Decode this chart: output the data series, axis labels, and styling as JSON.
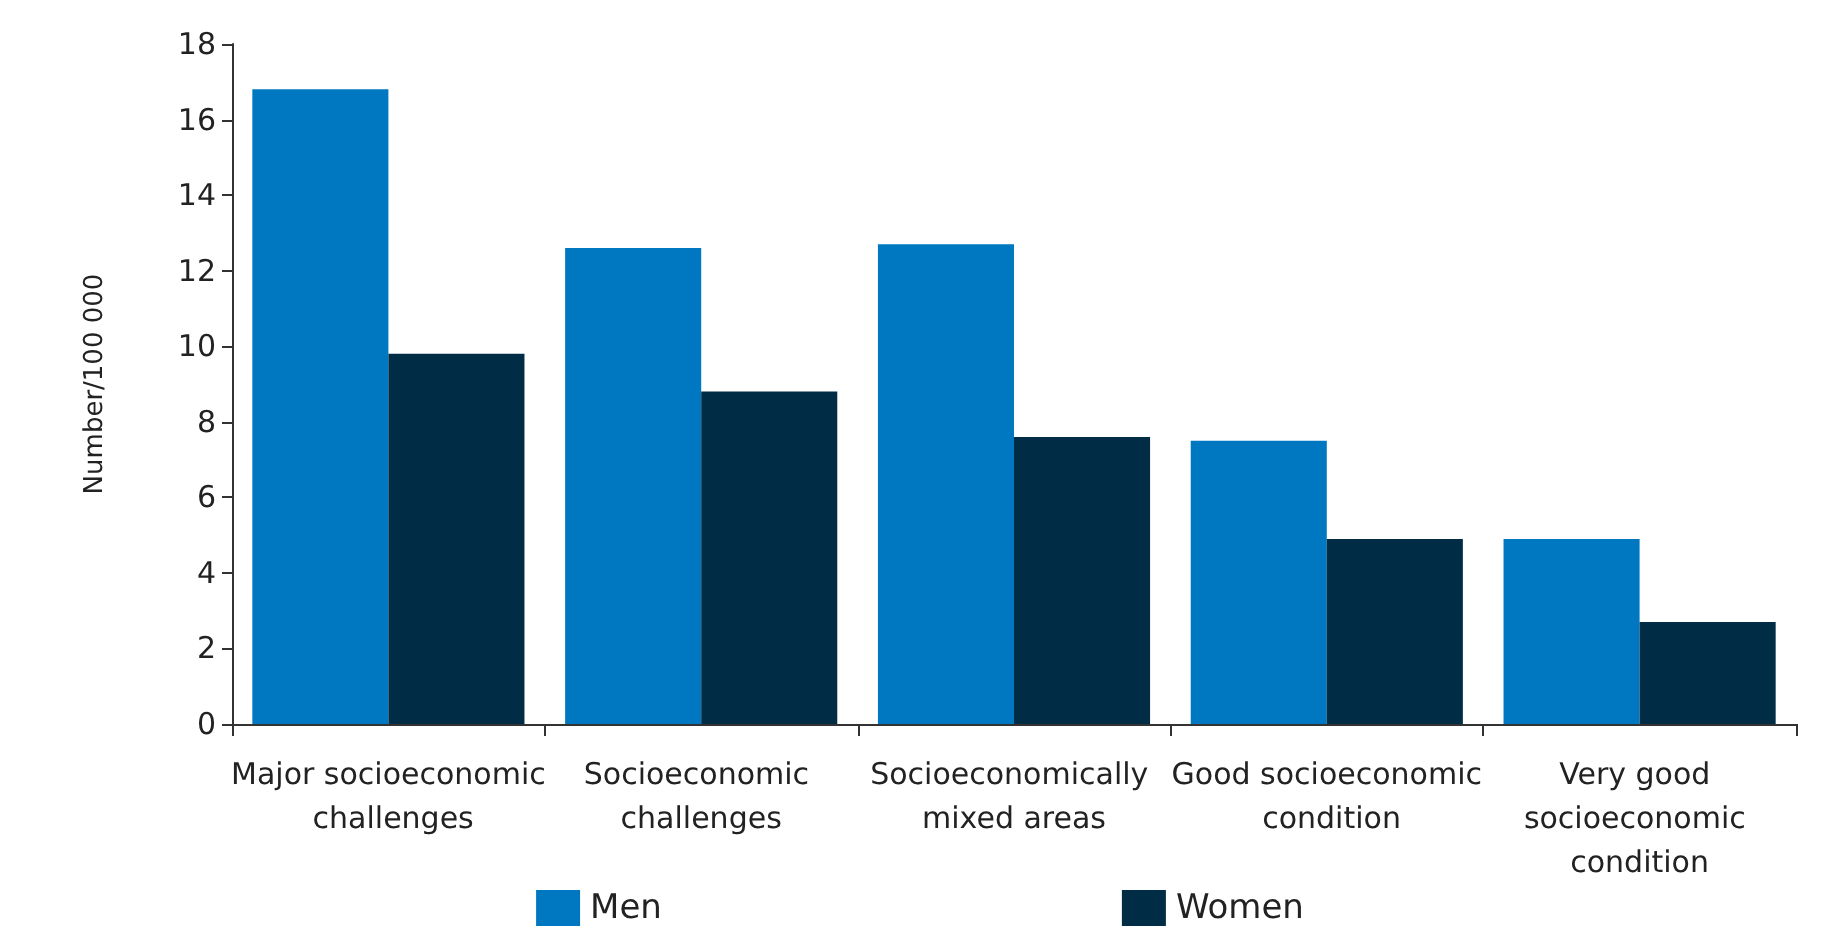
{
  "chart_data": {
    "type": "bar",
    "ylabel": "Number/100 000",
    "categories": [
      "Major socioeconomic challenges",
      "Socioeconomic challenges",
      "Socioeconomically mixed areas",
      "Good socioeconomic condition",
      "Very good socioeconomic condition"
    ],
    "series": [
      {
        "name": "Men",
        "color": "#0078c1",
        "values": [
          16.8,
          12.6,
          12.7,
          7.5,
          4.9
        ]
      },
      {
        "name": "Women",
        "color": "#002c46",
        "values": [
          9.8,
          8.8,
          7.6,
          4.9,
          2.7
        ]
      }
    ],
    "ylim": [
      0,
      18
    ],
    "yticks": [
      0,
      2,
      4,
      6,
      8,
      10,
      12,
      14,
      16,
      18
    ],
    "grid": false,
    "legend": "bottom"
  }
}
